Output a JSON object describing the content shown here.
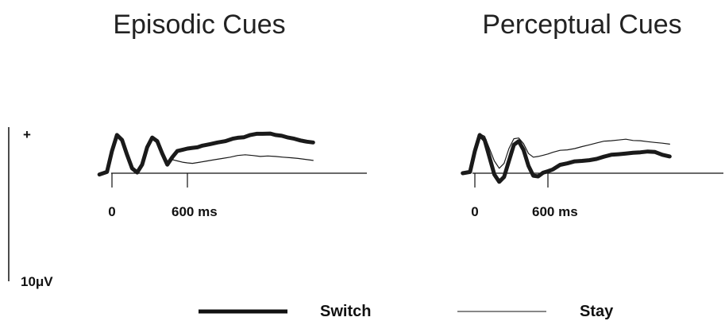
{
  "colors": {
    "trace": "#1a1a1a",
    "axis": "#111111",
    "background": "#ffffff"
  },
  "scale_bar": {
    "plus_label": "+",
    "amplitude_label": "10μV"
  },
  "legend": [
    {
      "label": "Switch",
      "style": "thick"
    },
    {
      "label": "Stay",
      "style": "thin"
    }
  ],
  "chart_data": [
    {
      "type": "line",
      "title": "Episodic Cues",
      "xlabel": "",
      "ylabel": "",
      "x_unit": "ms",
      "y_unit": "μV",
      "xlim": [
        -100,
        1600
      ],
      "ylim": [
        -6,
        22
      ],
      "x_tick_labels": [
        "0",
        "600 ms"
      ],
      "x_ticks": [
        0,
        600
      ],
      "grid": false,
      "series": [
        {
          "name": "Switch",
          "x": [
            -100,
            -40,
            0,
            40,
            80,
            120,
            160,
            200,
            240,
            280,
            320,
            360,
            400,
            440,
            480,
            520,
            560,
            600,
            640,
            680,
            720,
            780,
            840,
            900,
            960,
            1000,
            1050,
            1100,
            1150,
            1200,
            1260,
            1300,
            1350,
            1400,
            1450,
            1500,
            1550,
            1600
          ],
          "y": [
            -0.5,
            0.5,
            9,
            15.5,
            13.5,
            7.5,
            2,
            0.3,
            3.5,
            10.5,
            14.5,
            13,
            8,
            3.5,
            6.5,
            9,
            9.5,
            10,
            10.3,
            10.5,
            11.2,
            11.8,
            12.5,
            13,
            14,
            14.4,
            14.6,
            15.5,
            16,
            16,
            16.1,
            15.5,
            15.2,
            14.5,
            14,
            13.3,
            12.8,
            12.5
          ]
        },
        {
          "name": "Stay",
          "x": [
            -100,
            -40,
            0,
            40,
            80,
            120,
            160,
            200,
            240,
            280,
            320,
            360,
            400,
            440,
            480,
            520,
            560,
            600,
            640,
            700,
            760,
            820,
            880,
            940,
            1000,
            1060,
            1120,
            1180,
            1240,
            1300,
            1360,
            1420,
            1480,
            1540,
            1600
          ],
          "y": [
            -0.5,
            0.5,
            9,
            15.5,
            13.5,
            7.5,
            2,
            0.3,
            3.5,
            10.5,
            14.5,
            13,
            8,
            3.5,
            5.5,
            5,
            4.5,
            4.2,
            4,
            4.5,
            5,
            5.5,
            6,
            6.5,
            7.2,
            7.5,
            7.2,
            6.8,
            7,
            6.8,
            6.5,
            6.3,
            6,
            5.6,
            5.2
          ]
        }
      ]
    },
    {
      "type": "line",
      "title": "Perceptual Cues",
      "xlabel": "",
      "ylabel": "",
      "x_unit": "ms",
      "y_unit": "μV",
      "xlim": [
        -100,
        1600
      ],
      "ylim": [
        -6,
        22
      ],
      "x_tick_labels": [
        "0",
        "600 ms"
      ],
      "x_ticks": [
        0,
        600
      ],
      "grid": false,
      "series": [
        {
          "name": "Switch",
          "x": [
            -100,
            -40,
            0,
            40,
            80,
            120,
            160,
            200,
            240,
            280,
            320,
            360,
            400,
            440,
            480,
            520,
            560,
            600,
            640,
            700,
            760,
            820,
            880,
            940,
            1000,
            1060,
            1120,
            1180,
            1240,
            1300,
            1360,
            1420,
            1480,
            1540,
            1600
          ],
          "y": [
            0,
            0.5,
            9,
            15.5,
            13.5,
            6.5,
            -0.5,
            -3.5,
            -1.5,
            5,
            11.5,
            13,
            9.5,
            3,
            -1,
            -1.3,
            0.2,
            0.8,
            1.5,
            3.4,
            4,
            4.8,
            5,
            5.3,
            5.8,
            6.7,
            7.5,
            7.7,
            8,
            8.3,
            8.5,
            8.8,
            8.6,
            7.5,
            6.8
          ]
        },
        {
          "name": "Stay",
          "x": [
            -100,
            -40,
            0,
            40,
            80,
            120,
            160,
            200,
            240,
            280,
            320,
            360,
            400,
            440,
            480,
            520,
            560,
            600,
            640,
            700,
            760,
            820,
            880,
            940,
            1000,
            1060,
            1120,
            1180,
            1240,
            1300,
            1360,
            1420,
            1480,
            1540,
            1600
          ],
          "y": [
            0,
            0.5,
            9,
            16,
            15,
            10,
            5,
            2,
            4,
            10,
            14,
            14.3,
            12,
            8,
            6.5,
            6.8,
            7.3,
            7.8,
            8.5,
            9.3,
            9.5,
            10,
            10.8,
            11.5,
            12.3,
            13,
            13.2,
            13.5,
            13.8,
            13.3,
            13.2,
            12.8,
            12.5,
            12.2,
            11.8
          ]
        }
      ]
    }
  ]
}
